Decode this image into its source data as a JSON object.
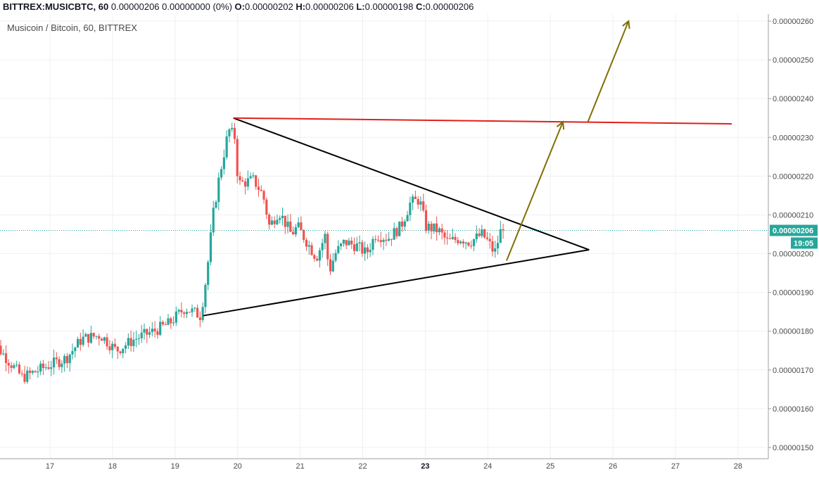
{
  "header": {
    "symbol": "BITTREX:MUSICBTC, 60",
    "last": "0.00000206",
    "change": "0.00000000 (0%)",
    "o_label": "O:",
    "o": "0.00000202",
    "h_label": "H:",
    "h": "0.00000206",
    "l_label": "L:",
    "l": "0.00000198",
    "c_label": "C:",
    "c": "0.00000206"
  },
  "chart_data": {
    "type": "candlestick",
    "title": "Musicoin / Bitcoin, 60, BITTREX",
    "y_ticks": [
      "0.00000150",
      "0.00000160",
      "0.00000170",
      "0.00000180",
      "0.00000190",
      "0.00000200",
      "0.00000210",
      "0.00000220",
      "0.00000230",
      "0.00000240",
      "0.00000250",
      "0.00000260"
    ],
    "y_min": 148,
    "y_max": 261,
    "x_ticks": [
      {
        "label": "17",
        "day": 17,
        "bold": false
      },
      {
        "label": "18",
        "day": 18,
        "bold": false
      },
      {
        "label": "19",
        "day": 19,
        "bold": false
      },
      {
        "label": "20",
        "day": 20,
        "bold": false
      },
      {
        "label": "21",
        "day": 21,
        "bold": false
      },
      {
        "label": "22",
        "day": 22,
        "bold": false
      },
      {
        "label": "23",
        "day": 23,
        "bold": true
      },
      {
        "label": "24",
        "day": 24,
        "bold": false
      },
      {
        "label": "25",
        "day": 25,
        "bold": false
      },
      {
        "label": "26",
        "day": 26,
        "bold": false
      },
      {
        "label": "27",
        "day": 27,
        "bold": false
      },
      {
        "label": "28",
        "day": 28,
        "bold": false
      }
    ],
    "last_price_label": "0.00000206",
    "countdown_label": "19:05",
    "last_price": 206,
    "colors": {
      "up": "#26a69a",
      "down": "#ef5350",
      "resistance": "#e0201b",
      "triangle": "#000000",
      "arrow": "#7f6f00",
      "last": "#26a69a"
    },
    "anchors": [
      {
        "d": 16.0,
        "p": 180
      },
      {
        "d": 16.35,
        "p": 173
      },
      {
        "d": 16.6,
        "p": 168
      },
      {
        "d": 17.0,
        "p": 171
      },
      {
        "d": 17.3,
        "p": 173
      },
      {
        "d": 17.55,
        "p": 178
      },
      {
        "d": 17.85,
        "p": 179
      },
      {
        "d": 18.1,
        "p": 175
      },
      {
        "d": 18.4,
        "p": 178
      },
      {
        "d": 18.7,
        "p": 180
      },
      {
        "d": 18.95,
        "p": 182
      },
      {
        "d": 19.2,
        "p": 186
      },
      {
        "d": 19.45,
        "p": 184
      },
      {
        "d": 19.55,
        "p": 195
      },
      {
        "d": 19.65,
        "p": 210
      },
      {
        "d": 19.75,
        "p": 220
      },
      {
        "d": 19.9,
        "p": 232
      },
      {
        "d": 20.0,
        "p": 230
      },
      {
        "d": 20.05,
        "p": 218
      },
      {
        "d": 20.3,
        "p": 219
      },
      {
        "d": 20.45,
        "p": 215
      },
      {
        "d": 20.55,
        "p": 207
      },
      {
        "d": 20.7,
        "p": 211
      },
      {
        "d": 20.9,
        "p": 205
      },
      {
        "d": 21.0,
        "p": 207
      },
      {
        "d": 21.15,
        "p": 203
      },
      {
        "d": 21.3,
        "p": 199
      },
      {
        "d": 21.45,
        "p": 205
      },
      {
        "d": 21.5,
        "p": 195
      },
      {
        "d": 21.6,
        "p": 200
      },
      {
        "d": 21.75,
        "p": 203
      },
      {
        "d": 21.95,
        "p": 202
      },
      {
        "d": 22.1,
        "p": 200
      },
      {
        "d": 22.25,
        "p": 205
      },
      {
        "d": 22.45,
        "p": 204
      },
      {
        "d": 22.65,
        "p": 207
      },
      {
        "d": 22.8,
        "p": 213
      },
      {
        "d": 22.95,
        "p": 214
      },
      {
        "d": 23.05,
        "p": 207
      },
      {
        "d": 23.25,
        "p": 206
      },
      {
        "d": 23.4,
        "p": 203
      },
      {
        "d": 23.6,
        "p": 204
      },
      {
        "d": 23.75,
        "p": 203
      },
      {
        "d": 23.95,
        "p": 205
      },
      {
        "d": 24.05,
        "p": 203
      },
      {
        "d": 24.15,
        "p": 200
      },
      {
        "d": 24.25,
        "p": 206
      }
    ],
    "lines": [
      {
        "name": "triangle-upper",
        "color": "triangle",
        "from": {
          "d": 19.93,
          "p": 235
        },
        "to": {
          "d": 25.62,
          "p": 201
        }
      },
      {
        "name": "triangle-lower",
        "color": "triangle",
        "from": {
          "d": 19.45,
          "p": 184
        },
        "to": {
          "d": 25.62,
          "p": 201
        }
      },
      {
        "name": "resistance",
        "color": "resistance",
        "from": {
          "d": 19.93,
          "p": 235
        },
        "to": {
          "d": 27.9,
          "p": 233.5
        }
      }
    ],
    "arrows": [
      {
        "name": "breakout-arrow-1",
        "from": {
          "d": 24.3,
          "p": 198.2
        },
        "to": {
          "d": 25.2,
          "p": 234
        }
      },
      {
        "name": "breakout-arrow-2",
        "from": {
          "d": 25.6,
          "p": 234
        },
        "to": {
          "d": 26.25,
          "p": 260
        }
      }
    ]
  }
}
